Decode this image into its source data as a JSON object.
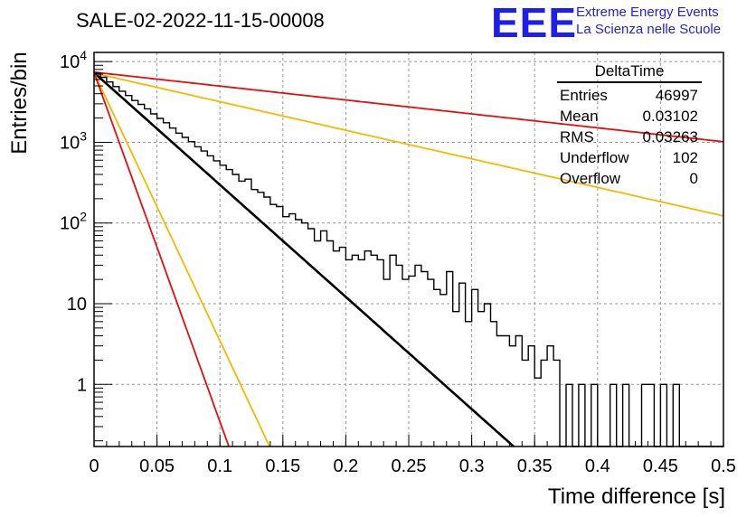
{
  "title": "SALE-02-2022-11-15-00008",
  "logo": {
    "text": "EEE",
    "line1": "Extreme Energy Events",
    "line2": "La Scienza nelle Scuole"
  },
  "colors": {
    "red": "#e01010",
    "orange": "#f5b800",
    "black": "#000000",
    "logo": "#1f1fe6"
  },
  "stats": {
    "title": "DeltaTime",
    "rows": [
      {
        "label": "Entries",
        "value": "46997"
      },
      {
        "label": "Mean",
        "value": "0.03102"
      },
      {
        "label": "RMS",
        "value": "0.03263"
      },
      {
        "label": "Underflow",
        "value": "102"
      },
      {
        "label": "Overflow",
        "value": "0"
      }
    ]
  },
  "chart_data": {
    "type": "histogram",
    "xlabel": "Time difference [s]",
    "ylabel": "Entries/bin",
    "xlim": [
      0,
      0.5
    ],
    "ylim": [
      0.17,
      13000
    ],
    "log_y": true,
    "grid": true,
    "x_ticks": [
      "0",
      "0.05",
      "0.1",
      "0.15",
      "0.2",
      "0.25",
      "0.3",
      "0.35",
      "0.4",
      "0.45",
      "0.5"
    ],
    "y_ticks": [
      {
        "value": 1,
        "label": "1"
      },
      {
        "value": 10,
        "label": "10"
      },
      {
        "value": 100,
        "label": "10^2"
      },
      {
        "value": 1000,
        "label": "10^3"
      },
      {
        "value": 10000,
        "label": "10^4"
      }
    ],
    "bin_width": 0.005,
    "histogram": [
      7200,
      6400,
      5600,
      4900,
      4300,
      3800,
      3300,
      2950,
      2600,
      2250,
      1980,
      1750,
      1500,
      1300,
      1150,
      1020,
      880,
      780,
      680,
      590,
      520,
      460,
      400,
      330,
      350,
      260,
      240,
      210,
      170,
      160,
      120,
      130,
      110,
      100,
      85,
      60,
      80,
      60,
      45,
      50,
      35,
      40,
      35,
      45,
      40,
      35,
      20,
      40,
      30,
      20,
      22,
      30,
      25,
      20,
      15,
      13,
      25,
      8,
      18,
      6,
      15,
      8,
      10,
      6,
      4,
      4,
      3,
      4,
      2,
      3,
      1.2,
      2,
      3,
      2,
      0,
      1,
      0,
      1,
      0,
      1,
      0,
      0,
      1,
      0,
      1,
      0,
      0,
      1,
      1,
      0,
      1,
      0,
      1,
      0,
      0,
      0,
      0,
      0,
      0,
      0
    ],
    "series": [
      {
        "name": "fit",
        "color": "#000000",
        "amplitude": 7300,
        "slope_per_s": -32.0
      },
      {
        "name": "red-slow",
        "color": "#e01010",
        "amplitude": 7400,
        "slope_per_s": -3.97
      },
      {
        "name": "orange-slow",
        "color": "#f5b800",
        "amplitude": 7200,
        "slope_per_s": -8.15
      },
      {
        "name": "orange-fast",
        "color": "#f5b800",
        "amplitude": 7300,
        "slope_per_s": -76.5
      },
      {
        "name": "red-fast",
        "color": "#e01010",
        "amplitude": 7300,
        "slope_per_s": -99.6
      }
    ]
  }
}
